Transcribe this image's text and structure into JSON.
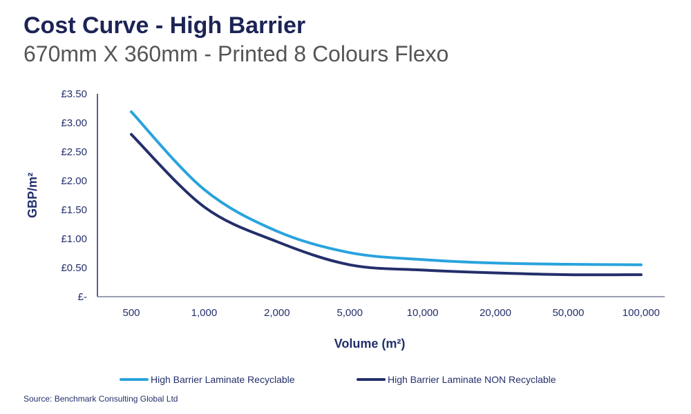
{
  "header": {
    "title": "Cost Curve - High Barrier",
    "subtitle": "670mm X 360mm - Printed 8 Colours Flexo"
  },
  "source": "Source: Benchmark Consulting Global Ltd",
  "chart_data": {
    "type": "line",
    "title": "Cost Curve - High Barrier",
    "subtitle": "670mm X 360mm - Printed 8 Colours Flexo",
    "xlabel": "Volume (m²)",
    "ylabel": "GBP/m²",
    "categories": [
      "500",
      "1,000",
      "2,000",
      "5,000",
      "10,000",
      "20,000",
      "50,000",
      "100,000"
    ],
    "yticks": [
      {
        "v": 0,
        "label": "£-"
      },
      {
        "v": 0.5,
        "label": "£0.50"
      },
      {
        "v": 1,
        "label": "£1.00"
      },
      {
        "v": 1.5,
        "label": "£1.50"
      },
      {
        "v": 2,
        "label": "£2.00"
      },
      {
        "v": 2.5,
        "label": "£2.50"
      },
      {
        "v": 3,
        "label": "£3.00"
      },
      {
        "v": 3.5,
        "label": "£3.50"
      }
    ],
    "ylim": [
      0,
      3.5
    ],
    "grid": false,
    "legend_position": "bottom",
    "series": [
      {
        "name": "High Barrier Laminate  Recyclable",
        "color": "#29a3dd",
        "values": [
          3.19,
          1.85,
          1.13,
          0.76,
          0.64,
          0.58,
          0.56,
          0.55
        ]
      },
      {
        "name": "High Barrier Laminate NON Recyclable",
        "color": "#232f6b",
        "values": [
          2.8,
          1.55,
          0.95,
          0.55,
          0.46,
          0.41,
          0.38,
          0.38
        ]
      }
    ]
  }
}
